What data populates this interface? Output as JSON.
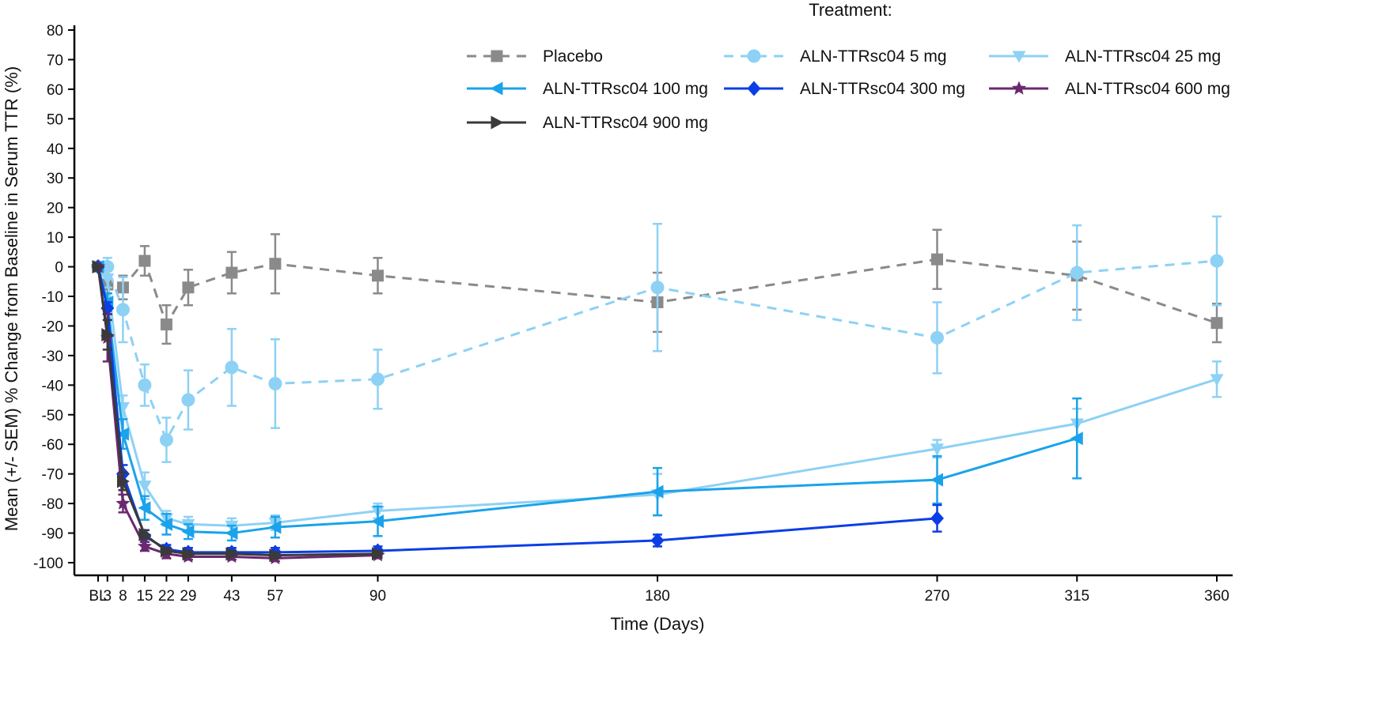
{
  "chart_data": {
    "type": "line",
    "title": "",
    "xlabel": "Time (Days)",
    "ylabel": "Mean (+/- SEM) % Change from Baseline in Serum TTR (%)",
    "ylim": [
      -100,
      80
    ],
    "yticks": [
      -100,
      -90,
      -80,
      -70,
      -60,
      -50,
      -40,
      -30,
      -20,
      -10,
      0,
      10,
      20,
      30,
      40,
      50,
      60,
      70,
      80
    ],
    "xticks": [
      0,
      3,
      8,
      15,
      22,
      29,
      43,
      57,
      90,
      180,
      270,
      315,
      360
    ],
    "xtick_labels": [
      "BL",
      "3",
      "8",
      "15",
      "22",
      "29",
      "43",
      "57",
      "90",
      "180",
      "270",
      "315",
      "360"
    ],
    "legend_title": "Treatment:",
    "legend_position": "top-right",
    "grid": false,
    "series": [
      {
        "name": "Placebo",
        "color": "#8a8a8a",
        "dashed": true,
        "marker": "square",
        "points": [
          {
            "x": 0,
            "y": 0,
            "err": 0
          },
          {
            "x": 3,
            "y": -6,
            "err": 3
          },
          {
            "x": 8,
            "y": -7,
            "err": 4
          },
          {
            "x": 15,
            "y": 2,
            "err": 5
          },
          {
            "x": 22,
            "y": -19.5,
            "err": 6.5
          },
          {
            "x": 29,
            "y": -7,
            "err": 6
          },
          {
            "x": 43,
            "y": -2,
            "err": 7
          },
          {
            "x": 57,
            "y": 1,
            "err": 10
          },
          {
            "x": 90,
            "y": -3,
            "err": 6
          },
          {
            "x": 180,
            "y": -12,
            "err": 10
          },
          {
            "x": 270,
            "y": 2.5,
            "err": 10
          },
          {
            "x": 315,
            "y": -3,
            "err": 11.5
          },
          {
            "x": 360,
            "y": -19,
            "err": 6.5
          }
        ]
      },
      {
        "name": "ALN-TTRsc04 5 mg",
        "color": "#8dd1f5",
        "dashed": true,
        "marker": "circle",
        "points": [
          {
            "x": 0,
            "y": 0,
            "err": 0
          },
          {
            "x": 3,
            "y": 0,
            "err": 3
          },
          {
            "x": 8,
            "y": -14.5,
            "err": 11
          },
          {
            "x": 15,
            "y": -40,
            "err": 7
          },
          {
            "x": 22,
            "y": -58.5,
            "err": 7.5
          },
          {
            "x": 29,
            "y": -45,
            "err": 10
          },
          {
            "x": 43,
            "y": -34,
            "err": 13
          },
          {
            "x": 57,
            "y": -39.5,
            "err": 15
          },
          {
            "x": 90,
            "y": -38,
            "err": 10
          },
          {
            "x": 180,
            "y": -7,
            "err": 21.5
          },
          {
            "x": 270,
            "y": -24,
            "err": 12
          },
          {
            "x": 315,
            "y": -2,
            "err": 16
          },
          {
            "x": 360,
            "y": 2,
            "err": 15
          }
        ]
      },
      {
        "name": "ALN-TTRsc04 25 mg",
        "color": "#8dd1f5",
        "dashed": false,
        "marker": "triangle-down",
        "points": [
          {
            "x": 0,
            "y": 0,
            "err": 0
          },
          {
            "x": 3,
            "y": -4,
            "err": 3
          },
          {
            "x": 8,
            "y": -47.5,
            "err": 4
          },
          {
            "x": 15,
            "y": -74,
            "err": 4.5
          },
          {
            "x": 22,
            "y": -85,
            "err": 2.5
          },
          {
            "x": 29,
            "y": -87,
            "err": 2.5
          },
          {
            "x": 43,
            "y": -87.5,
            "err": 2.5
          },
          {
            "x": 57,
            "y": -86.5,
            "err": 2.5
          },
          {
            "x": 90,
            "y": -82.5,
            "err": 2.5
          },
          {
            "x": 180,
            "y": -77,
            "err": 7
          },
          {
            "x": 270,
            "y": -61.5,
            "err": 3
          },
          {
            "x": 315,
            "y": -53,
            "err": 5
          },
          {
            "x": 360,
            "y": -38,
            "err": 6
          }
        ]
      },
      {
        "name": "ALN-TTRsc04 100 mg",
        "color": "#1aa3ea",
        "dashed": false,
        "marker": "triangle-left",
        "points": [
          {
            "x": 0,
            "y": 0,
            "err": 0
          },
          {
            "x": 3,
            "y": -12,
            "err": 3
          },
          {
            "x": 8,
            "y": -56.5,
            "err": 5
          },
          {
            "x": 15,
            "y": -81.5,
            "err": 4
          },
          {
            "x": 22,
            "y": -87,
            "err": 3.5
          },
          {
            "x": 29,
            "y": -89.5,
            "err": 2.5
          },
          {
            "x": 43,
            "y": -90,
            "err": 2.5
          },
          {
            "x": 57,
            "y": -88,
            "err": 3.5
          },
          {
            "x": 90,
            "y": -86,
            "err": 5
          },
          {
            "x": 180,
            "y": -76,
            "err": 8
          },
          {
            "x": 270,
            "y": -72,
            "err": 8
          },
          {
            "x": 315,
            "y": -58,
            "err": 13.5
          }
        ]
      },
      {
        "name": "ALN-TTRsc04 300 mg",
        "color": "#0b3ee6",
        "dashed": false,
        "marker": "diamond",
        "points": [
          {
            "x": 0,
            "y": 0,
            "err": 0
          },
          {
            "x": 3,
            "y": -14,
            "err": 2
          },
          {
            "x": 8,
            "y": -70,
            "err": 3
          },
          {
            "x": 15,
            "y": -91,
            "err": 2
          },
          {
            "x": 22,
            "y": -95.5,
            "err": 1.5
          },
          {
            "x": 29,
            "y": -96.5,
            "err": 1.5
          },
          {
            "x": 43,
            "y": -96.5,
            "err": 1.5
          },
          {
            "x": 57,
            "y": -96.5,
            "err": 1.5
          },
          {
            "x": 90,
            "y": -96,
            "err": 1.5
          },
          {
            "x": 180,
            "y": -92.5,
            "err": 2
          },
          {
            "x": 270,
            "y": -85,
            "err": 4.5
          }
        ]
      },
      {
        "name": "ALN-TTRsc04 600 mg",
        "color": "#6b2870",
        "dashed": false,
        "marker": "star",
        "points": [
          {
            "x": 0,
            "y": 0,
            "err": 0
          },
          {
            "x": 3,
            "y": -24,
            "err": 8
          },
          {
            "x": 8,
            "y": -80,
            "err": 3
          },
          {
            "x": 15,
            "y": -94.5,
            "err": 1.5
          },
          {
            "x": 22,
            "y": -97,
            "err": 1.5
          },
          {
            "x": 29,
            "y": -98,
            "err": 1
          },
          {
            "x": 43,
            "y": -98,
            "err": 1
          },
          {
            "x": 57,
            "y": -98.5,
            "err": 1
          },
          {
            "x": 90,
            "y": -97.5,
            "err": 1
          }
        ]
      },
      {
        "name": "ALN-TTRsc04 900 mg",
        "color": "#3a3a3a",
        "dashed": false,
        "marker": "triangle-right",
        "points": [
          {
            "x": 0,
            "y": 0,
            "err": 0
          },
          {
            "x": 3,
            "y": -23,
            "err": 5
          },
          {
            "x": 8,
            "y": -72.5,
            "err": 3
          },
          {
            "x": 15,
            "y": -90.5,
            "err": 1.5
          },
          {
            "x": 22,
            "y": -96,
            "err": 1
          },
          {
            "x": 29,
            "y": -97,
            "err": 1
          },
          {
            "x": 43,
            "y": -97,
            "err": 1
          },
          {
            "x": 57,
            "y": -97.5,
            "err": 1
          },
          {
            "x": 90,
            "y": -97,
            "err": 1
          }
        ]
      }
    ]
  }
}
